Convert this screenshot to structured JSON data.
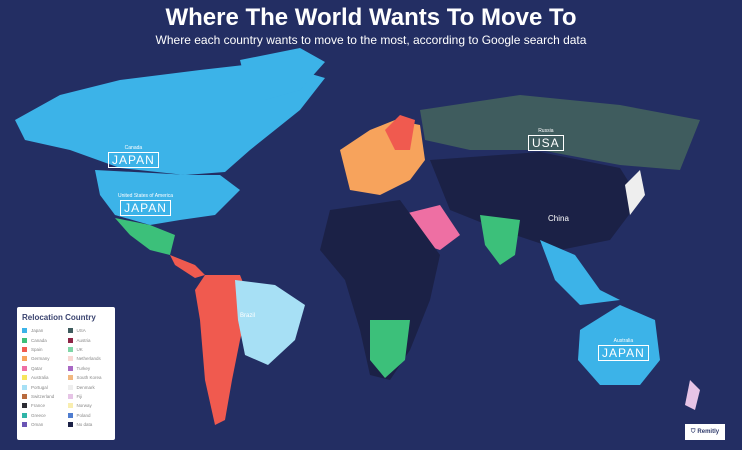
{
  "header": {
    "title": "Where The World Wants To Move To",
    "subtitle": "Where each country wants to move to the most, according to Google search data"
  },
  "colors": {
    "background": "#232e63",
    "no_data": "#1b2146",
    "japan": "#3cb3e8",
    "usa": "#3f5c5e",
    "spain": "#f05a4f"
  },
  "labels": [
    {
      "country": "Canada",
      "value": "JAPAN"
    },
    {
      "country": "United States of America",
      "value": "JAPAN"
    },
    {
      "country": "Russia",
      "value": "USA"
    },
    {
      "country": "China",
      "value": ""
    },
    {
      "country": "Brazil",
      "value": ""
    },
    {
      "country": "Australia",
      "value": "JAPAN"
    }
  ],
  "legend": {
    "title": "Relocation Country",
    "items": [
      {
        "label": "Japan",
        "color": "#3cb3e8"
      },
      {
        "label": "Canada",
        "color": "#3cc07a"
      },
      {
        "label": "Spain",
        "color": "#f05a4f"
      },
      {
        "label": "Germany",
        "color": "#f7a35c"
      },
      {
        "label": "Qatar",
        "color": "#ee6fa3"
      },
      {
        "label": "Australia",
        "color": "#f6e55b"
      },
      {
        "label": "Portugal",
        "color": "#a7e0f5"
      },
      {
        "label": "Switzerland",
        "color": "#b86a3e"
      },
      {
        "label": "France",
        "color": "#2d2d35"
      },
      {
        "label": "Greece",
        "color": "#2fb5a8"
      },
      {
        "label": "Oman",
        "color": "#6a55b5"
      },
      {
        "label": "USA",
        "color": "#3f5c5e"
      },
      {
        "label": "Austria",
        "color": "#8e2546"
      },
      {
        "label": "UK",
        "color": "#7fd6a6"
      },
      {
        "label": "Netherlands",
        "color": "#f8d7d3"
      },
      {
        "label": "Turkey",
        "color": "#a968c4"
      },
      {
        "label": "South Korea",
        "color": "#f2b880"
      },
      {
        "label": "Denmark",
        "color": "#eeeeee"
      },
      {
        "label": "Fiji",
        "color": "#e6c4e6"
      },
      {
        "label": "Norway",
        "color": "#f9eeb0"
      },
      {
        "label": "Poland",
        "color": "#4f7dd0"
      },
      {
        "label": "No data",
        "color": "#1b2146"
      }
    ]
  },
  "logo": {
    "text": "Remitly"
  }
}
